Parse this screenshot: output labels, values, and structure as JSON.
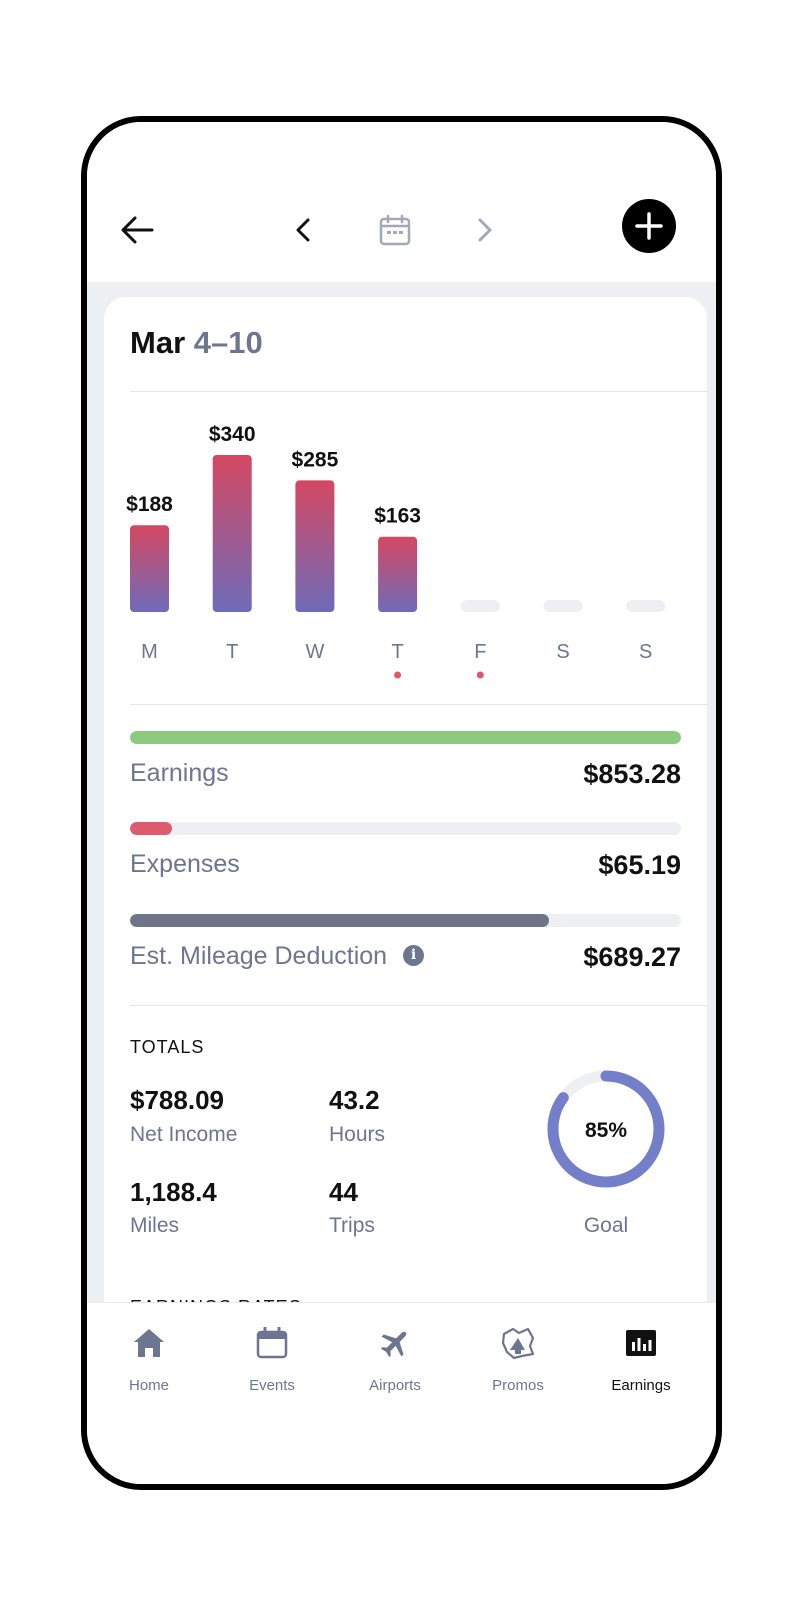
{
  "header": {
    "back_icon": "arrow-left-icon",
    "prev_icon": "chevron-left-icon",
    "calendar_icon": "calendar-icon",
    "next_icon": "chevron-right-icon",
    "add_icon": "plus-circle-icon"
  },
  "summary": {
    "month": "Mar",
    "range": "4–10"
  },
  "chart_data": {
    "type": "bar",
    "categories": [
      "M",
      "T",
      "W",
      "T",
      "F",
      "S",
      "S"
    ],
    "values": [
      188,
      340,
      285,
      163,
      0,
      0,
      0
    ],
    "value_labels": [
      "$188",
      "$340",
      "$285",
      "$163",
      "",
      "",
      ""
    ],
    "marked_days": [
      3,
      4
    ],
    "ylim": [
      0,
      340
    ],
    "gradient_colors": [
      "#d44862",
      "#6e6bb8"
    ],
    "empty_color": "#eeeff3",
    "marker_color": "#e0566b"
  },
  "metrics": [
    {
      "label": "Earnings",
      "value": "$853.28",
      "fill_fraction": 1.0,
      "color": "#8ccb7e"
    },
    {
      "label": "Expenses",
      "value": "$65.19",
      "fill_fraction": 0.076,
      "color": "#e05a6f"
    },
    {
      "label": "Est. Mileage Deduction",
      "value": "$689.27",
      "fill_fraction": 0.76,
      "color": "#6f7488",
      "info_icon": "info-icon"
    }
  ],
  "totals": {
    "heading": "TOTALS",
    "net_income": {
      "value": "$788.09",
      "label": "Net Income"
    },
    "hours": {
      "value": "43.2",
      "label": "Hours"
    },
    "miles": {
      "value": "1,188.4",
      "label": "Miles"
    },
    "trips": {
      "value": "44",
      "label": "Trips"
    },
    "goal": {
      "percent_text": "85%",
      "fraction": 0.85,
      "label": "Goal",
      "color": "#737fc9",
      "track_color": "#eeeff3"
    }
  },
  "earnings_rates": {
    "heading": "EARNINGS RATES"
  },
  "nav": {
    "items": [
      {
        "label": "Home",
        "icon": "home-icon"
      },
      {
        "label": "Events",
        "icon": "calendar-icon"
      },
      {
        "label": "Airports",
        "icon": "airplane-icon"
      },
      {
        "label": "Promos",
        "icon": "megaphone-icon"
      },
      {
        "label": "Earnings",
        "icon": "bar-chart-icon"
      }
    ],
    "active": "Earnings"
  }
}
